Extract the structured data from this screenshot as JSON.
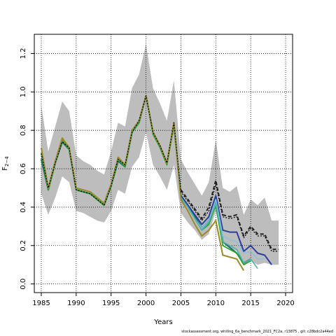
{
  "chart_data": {
    "type": "line",
    "xlabel": "Years",
    "ylabel_main": "F",
    "ylabel_sub": "2−4",
    "xlim": [
      1984,
      2021
    ],
    "ylim": [
      -0.045,
      1.3
    ],
    "xticks": [
      1985,
      1990,
      1995,
      2000,
      2005,
      2010,
      2015,
      2020
    ],
    "yticks": [
      0.0,
      0.2,
      0.4,
      0.6,
      0.8,
      1.0,
      1.2
    ],
    "ytick_labels": [
      "0.0",
      "0.2",
      "0.4",
      "0.6",
      "0.8",
      "1.0",
      "1.2"
    ],
    "grid": true,
    "band": {
      "color": "#bdbdbd",
      "x": [
        1985,
        1986,
        1987,
        1988,
        1989,
        1990,
        1991,
        1992,
        1993,
        1994,
        1995,
        1996,
        1997,
        1998,
        1999,
        2000,
        2001,
        2002,
        2003,
        2004,
        2005,
        2006,
        2007,
        2008,
        2009,
        2010,
        2011,
        2012,
        2013,
        2014,
        2015,
        2016,
        2017,
        2018,
        2019
      ],
      "upper": [
        0.93,
        0.69,
        0.82,
        0.95,
        0.9,
        0.67,
        0.64,
        0.62,
        0.59,
        0.57,
        0.69,
        0.84,
        0.82,
        1.02,
        1.09,
        1.25,
        1.02,
        0.94,
        0.85,
        1.06,
        0.65,
        0.58,
        0.52,
        0.46,
        0.53,
        0.75,
        0.5,
        0.48,
        0.51,
        0.36,
        0.44,
        0.41,
        0.45,
        0.33,
        0.33
      ],
      "lower": [
        0.47,
        0.36,
        0.45,
        0.56,
        0.53,
        0.38,
        0.37,
        0.35,
        0.33,
        0.32,
        0.38,
        0.49,
        0.47,
        0.61,
        0.66,
        0.79,
        0.62,
        0.56,
        0.49,
        0.62,
        0.37,
        0.32,
        0.28,
        0.23,
        0.26,
        0.38,
        0.22,
        0.19,
        0.17,
        0.1,
        0.12,
        0.1,
        0.11,
        0.1,
        0.1
      ]
    },
    "series": [
      {
        "color": "#1f6f6f",
        "width": 2.2,
        "x": [
          1985,
          1986,
          1987,
          1988,
          1989,
          1990,
          1991,
          1992,
          1993,
          1994,
          1995,
          1996,
          1997,
          1998,
          1999,
          2000,
          2001,
          2002,
          2003,
          2004,
          2005,
          2006,
          2007,
          2008,
          2009,
          2010,
          2011,
          2012,
          2013,
          2014,
          2015
        ],
        "values": [
          0.65,
          0.49,
          0.63,
          0.74,
          0.7,
          0.49,
          0.48,
          0.47,
          0.44,
          0.41,
          0.51,
          0.64,
          0.61,
          0.79,
          0.84,
          0.98,
          0.79,
          0.72,
          0.63,
          0.83,
          0.46,
          0.41,
          0.35,
          0.29,
          0.33,
          0.44,
          0.22,
          0.19,
          0.16,
          0.11,
          0.13
        ]
      },
      {
        "color": "#2ca02c",
        "width": 1.8,
        "x": [
          1985,
          1986,
          1987,
          1988,
          1989,
          1990,
          1991,
          1992,
          1993,
          1994,
          1995,
          1996,
          1997,
          1998,
          1999,
          2000,
          2001,
          2002,
          2003,
          2004,
          2005,
          2006,
          2007,
          2008,
          2009,
          2010,
          2011,
          2012,
          2013,
          2014,
          2015
        ],
        "values": [
          0.68,
          0.49,
          0.63,
          0.75,
          0.7,
          0.49,
          0.48,
          0.47,
          0.44,
          0.41,
          0.51,
          0.65,
          0.61,
          0.79,
          0.84,
          0.98,
          0.78,
          0.71,
          0.62,
          0.83,
          0.45,
          0.4,
          0.34,
          0.28,
          0.31,
          0.41,
          0.2,
          0.18,
          0.16,
          0.1,
          0.12
        ]
      },
      {
        "color": "#2c3e9b",
        "width": 2.0,
        "x": [
          2005,
          2006,
          2007,
          2008,
          2009,
          2010,
          2011,
          2012,
          2013,
          2014,
          2015,
          2016,
          2017,
          2018
        ],
        "values": [
          0.46,
          0.41,
          0.36,
          0.31,
          0.35,
          0.46,
          0.28,
          0.27,
          0.27,
          0.17,
          0.2,
          0.16,
          0.15,
          0.1
        ]
      },
      {
        "color": "#8fbfe0",
        "width": 1.6,
        "x": [
          2005,
          2006,
          2007,
          2008,
          2009,
          2010,
          2011,
          2012,
          2013,
          2014,
          2015,
          2016,
          2017
        ],
        "values": [
          0.45,
          0.4,
          0.34,
          0.29,
          0.33,
          0.44,
          0.25,
          0.23,
          0.22,
          0.16,
          0.17,
          0.13,
          0.13
        ]
      },
      {
        "color": "#4db6ac",
        "width": 1.6,
        "x": [
          2005,
          2006,
          2007,
          2008,
          2009,
          2010,
          2011,
          2012,
          2013,
          2014,
          2015,
          2016
        ],
        "values": [
          0.45,
          0.4,
          0.34,
          0.28,
          0.32,
          0.42,
          0.22,
          0.2,
          0.18,
          0.11,
          0.13,
          0.08
        ]
      },
      {
        "color": "#9a8a2a",
        "width": 2.0,
        "x": [
          1985,
          1986,
          1987,
          1988,
          1989,
          1990,
          1991,
          1992,
          1993,
          1994,
          1995,
          1996,
          1997,
          1998,
          1999,
          2000,
          2001,
          2002,
          2003,
          2004,
          2005,
          2006,
          2007,
          2008,
          2009,
          2010,
          2011,
          2012,
          2013,
          2014
        ],
        "values": [
          0.71,
          0.5,
          0.64,
          0.76,
          0.71,
          0.5,
          0.49,
          0.48,
          0.45,
          0.42,
          0.52,
          0.66,
          0.62,
          0.8,
          0.85,
          0.98,
          0.79,
          0.72,
          0.63,
          0.84,
          0.44,
          0.38,
          0.31,
          0.25,
          0.28,
          0.33,
          0.15,
          0.14,
          0.13,
          0.07
        ]
      },
      {
        "color": "#222222",
        "width": 2.0,
        "dash": "5,3",
        "x": [
          2005,
          2006,
          2007,
          2008,
          2009,
          2010,
          2011,
          2012,
          2013,
          2014,
          2015,
          2016,
          2017,
          2018,
          2019
        ],
        "values": [
          0.49,
          0.44,
          0.39,
          0.34,
          0.4,
          0.54,
          0.36,
          0.35,
          0.36,
          0.25,
          0.3,
          0.26,
          0.26,
          0.18,
          0.18
        ]
      },
      {
        "color": "#000000",
        "width": 1.2,
        "dash": "2,2",
        "x": [
          1985,
          1986,
          1987,
          1988,
          1989,
          1990,
          1991,
          1992,
          1993,
          1994,
          1995,
          1996,
          1997,
          1998,
          1999,
          2000,
          2001,
          2002,
          2003,
          2004,
          2005,
          2006,
          2007,
          2008,
          2009,
          2010,
          2011,
          2012,
          2013,
          2014,
          2015,
          2016,
          2017,
          2018,
          2019
        ],
        "values": [
          0.68,
          0.5,
          0.63,
          0.74,
          0.71,
          0.49,
          0.48,
          0.47,
          0.44,
          0.41,
          0.51,
          0.65,
          0.62,
          0.79,
          0.85,
          0.98,
          0.79,
          0.72,
          0.63,
          0.84,
          0.48,
          0.43,
          0.38,
          0.33,
          0.38,
          0.52,
          0.35,
          0.34,
          0.35,
          0.24,
          0.29,
          0.25,
          0.25,
          0.17,
          0.17
        ]
      }
    ]
  },
  "footer": "stockassessment.org,  whiting_6a_benchmark_2021_FC2a,  r13875 ,  git: c28bdc2a44ed"
}
